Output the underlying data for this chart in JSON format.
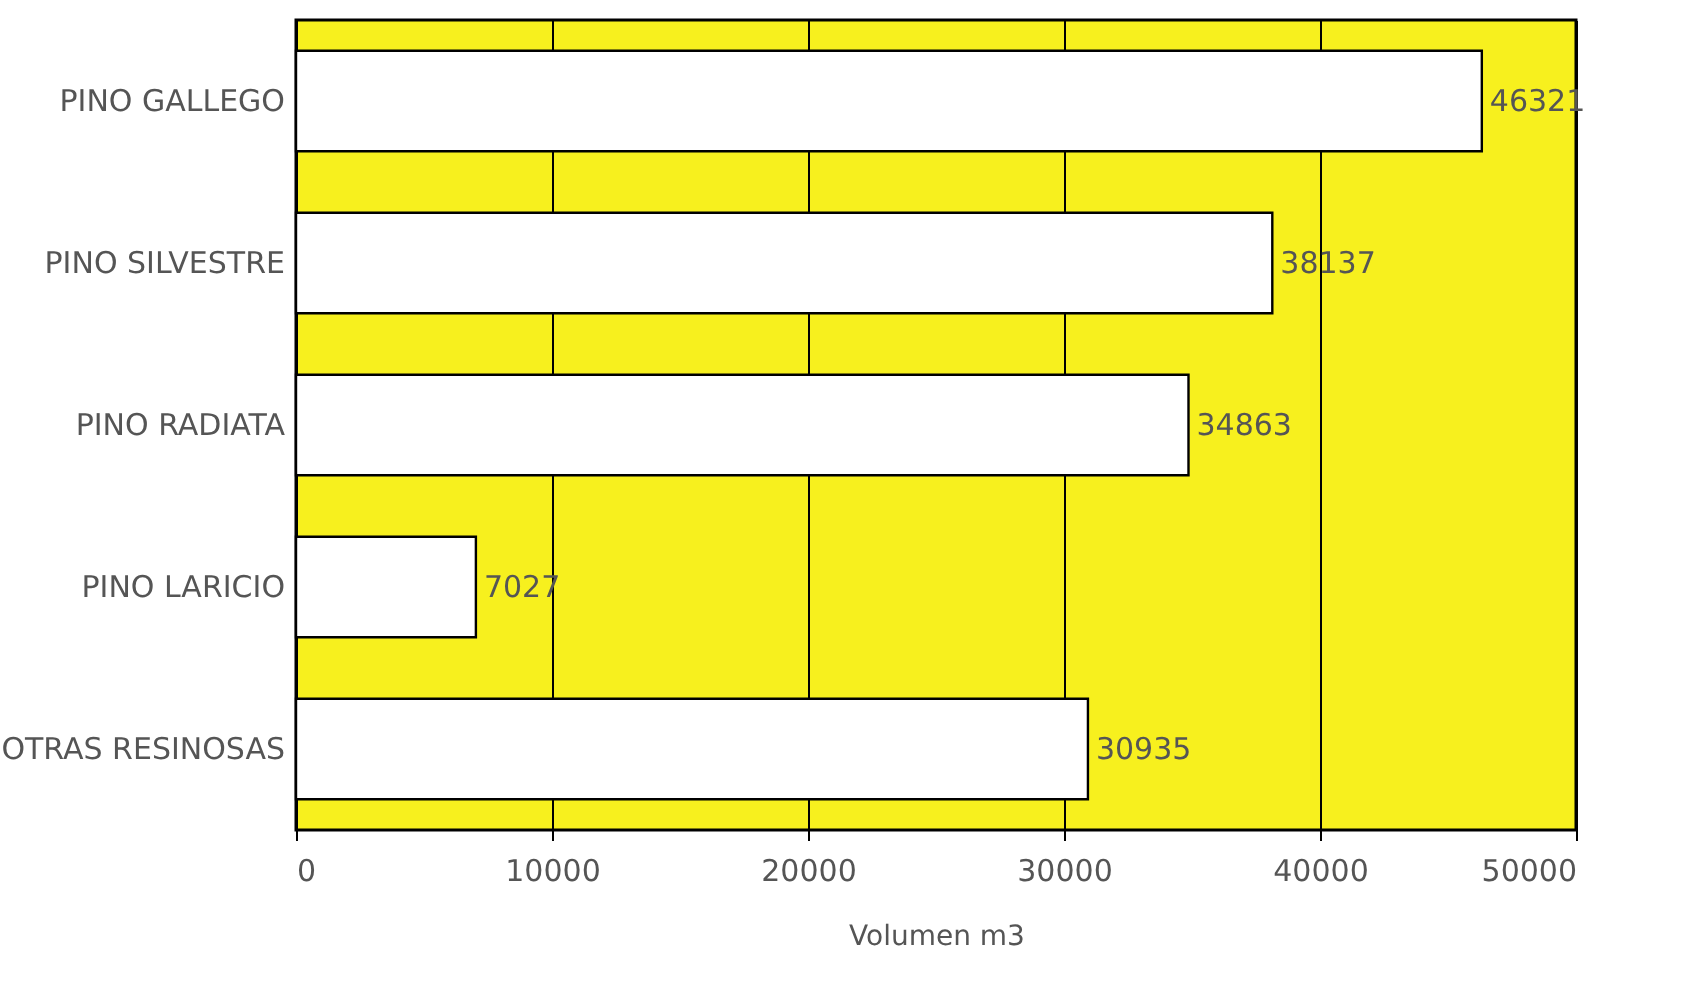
{
  "chart_data": {
    "type": "bar",
    "orientation": "horizontal",
    "xlabel": "Volumen m3",
    "categories": [
      "PINO GALLEGO",
      "PINO SILVESTRE",
      "PINO RADIATA",
      "PINO LARICIO",
      "OTRAS RESINOSAS"
    ],
    "values": [
      46321,
      38137,
      34863,
      7027,
      30935
    ],
    "value_labels": [
      "46321",
      "38137",
      "34863",
      "7027",
      "30935"
    ],
    "color": "#ffffff",
    "xlim": [
      0,
      50000
    ],
    "xticks": [
      0,
      10000,
      20000,
      30000,
      40000,
      50000
    ],
    "grid": "x"
  }
}
